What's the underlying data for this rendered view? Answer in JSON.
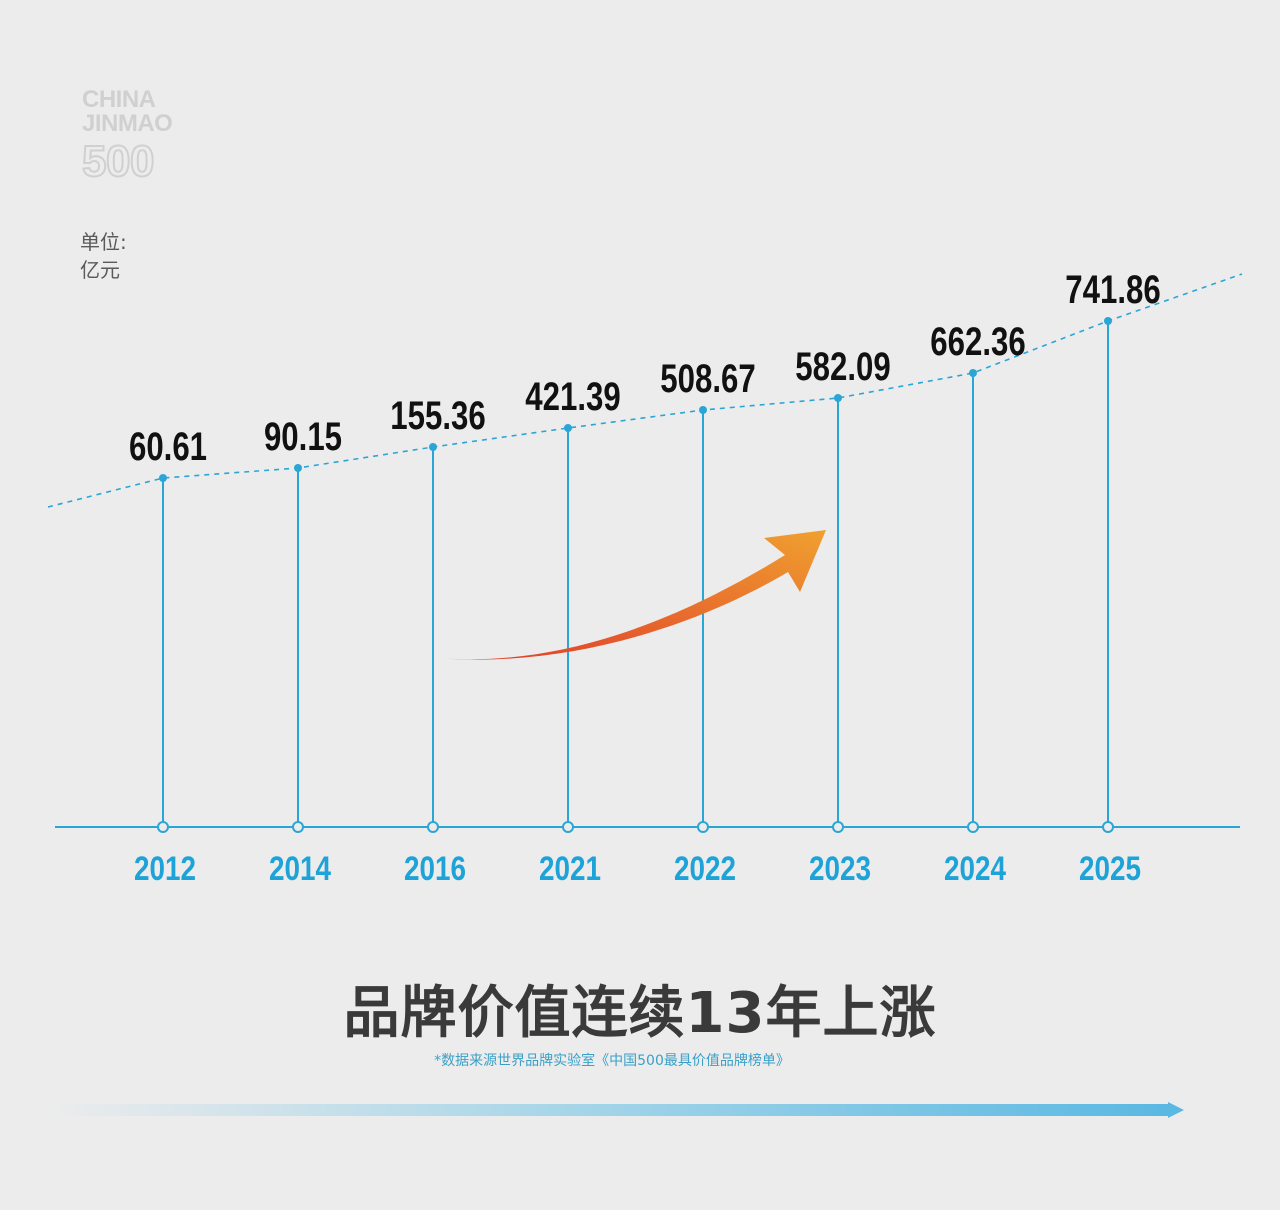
{
  "logo": {
    "line1": "CHINA",
    "line2": "JINMAO",
    "number": "500"
  },
  "unit": {
    "line1": "单位:",
    "line2": "亿元"
  },
  "headline": "品牌价值连续13年上涨",
  "source": "*数据来源世界品牌实验室《中国500最具价值品牌榜单》",
  "colors": {
    "line": "#2aa6d6",
    "year_text": "#1ea3d8",
    "value_text": "#111111",
    "arrow_start": "#e03a2a",
    "arrow_end": "#f0a030"
  },
  "chart_data": {
    "type": "line",
    "categories": [
      "2012",
      "2014",
      "2016",
      "2021",
      "2022",
      "2023",
      "2024",
      "2025"
    ],
    "values": [
      60.61,
      90.15,
      155.36,
      421.39,
      508.67,
      582.09,
      662.36,
      741.86
    ],
    "value_labels": [
      "60.61",
      "90.15",
      "155.36",
      "421.39",
      "508.67",
      "582.09",
      "662.36",
      "741.86"
    ],
    "title": "",
    "xlabel": "",
    "ylabel": "",
    "grid": false,
    "trend_line": "dashed"
  }
}
